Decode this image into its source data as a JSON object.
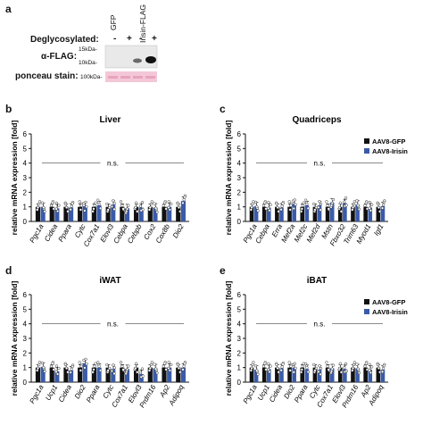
{
  "panel_letters": {
    "a": "a",
    "b": "b",
    "c": "c",
    "d": "d",
    "e": "e"
  },
  "blot": {
    "lane_groups": [
      "GFP",
      "Irisin-FLAG"
    ],
    "deglycosylated_label": "Deglycosylated:",
    "signs": [
      "-",
      "+",
      "-",
      "+"
    ],
    "flag_label": "α-FLAG:",
    "ponceau_label": "ponceau stain:",
    "markers": [
      "15kDa-",
      "10kDa-",
      "100kDa-"
    ]
  },
  "colors": {
    "gfp": "#111111",
    "irisin": "#3a5ba8",
    "ponceau": "#f4c7d6"
  },
  "chart_data": [
    {
      "type": "bar",
      "title": "Liver",
      "ylabel": "relative mRNA expression [fold]",
      "ylim": [
        0,
        6
      ],
      "yticks": [
        "0",
        "1",
        "2",
        "3",
        "4",
        "5",
        "6"
      ],
      "significance": "n.s.",
      "categories": [
        "Pgc1a",
        "Cidea",
        "Ppara",
        "Cytc",
        "Cox7a1",
        "Elovl3",
        "Cebpa",
        "Cebpb",
        "Cox2",
        "Cox8b",
        "Dio2"
      ],
      "series": [
        {
          "values": [
            1.0,
            1.0,
            1.0,
            1.0,
            1.0,
            1.0,
            1.0,
            1.0,
            1.0,
            1.0,
            1.0
          ]
        },
        {
          "values": [
            1.0,
            0.9,
            0.95,
            1.05,
            1.1,
            1.15,
            0.9,
            0.95,
            0.95,
            1.0,
            1.4
          ]
        }
      ]
    },
    {
      "type": "bar",
      "title": "Quadriceps",
      "ylabel": "relative mRNA expression [fold]",
      "ylim": [
        0,
        6
      ],
      "yticks": [
        "0",
        "1",
        "2",
        "3",
        "4",
        "5",
        "6"
      ],
      "significance": "n.s.",
      "categories": [
        "Pgc1a",
        "Cebpa",
        "Erra",
        "Mef2a",
        "Mef2c",
        "Mef2d",
        "Mstn",
        "Fbxo32",
        "Trim63",
        "Myod1",
        "Igf1"
      ],
      "series": [
        {
          "name": "AAV8-GFP",
          "values": [
            1.0,
            1.0,
            1.0,
            1.0,
            1.0,
            1.0,
            1.0,
            1.0,
            1.0,
            1.0,
            1.0
          ]
        },
        {
          "name": "AAV8-Irisin",
          "values": [
            1.05,
            0.95,
            0.95,
            1.2,
            1.1,
            1.1,
            1.3,
            1.25,
            1.15,
            0.95,
            1.05
          ]
        }
      ]
    },
    {
      "type": "bar",
      "title": "iWAT",
      "ylabel": "relative mRNA expression [fold]",
      "ylim": [
        0,
        6
      ],
      "yticks": [
        "0",
        "1",
        "2",
        "3",
        "4",
        "5",
        "6"
      ],
      "significance": "n.s.",
      "categories": [
        "Pgc1a",
        "Ucp1",
        "Cidea",
        "Dio2",
        "Ppara",
        "Cytc",
        "Cox7a1",
        "Elovl3",
        "Prdm16",
        "Ap2",
        "Adipoq"
      ],
      "series": [
        {
          "values": [
            1.0,
            1.0,
            1.0,
            1.0,
            1.0,
            1.0,
            1.0,
            1.0,
            1.0,
            1.0,
            1.0
          ]
        },
        {
          "values": [
            1.05,
            0.75,
            0.8,
            1.3,
            1.0,
            0.9,
            0.9,
            0.55,
            0.95,
            1.0,
            1.0
          ]
        }
      ]
    },
    {
      "type": "bar",
      "title": "iBAT",
      "ylabel": "relative mRNA expression [fold]",
      "ylim": [
        0,
        6
      ],
      "yticks": [
        "0",
        "1",
        "2",
        "3",
        "4",
        "5",
        "6"
      ],
      "significance": "n.s.",
      "categories": [
        "Pgc1a",
        "Ucp1",
        "Cidea",
        "Dio2",
        "Ppara",
        "Cytc",
        "Cox7a1",
        "Elovl3",
        "Prdm16",
        "Ap2",
        "Adipoq"
      ],
      "series": [
        {
          "name": "AAV8-GFP",
          "values": [
            1.0,
            1.0,
            1.0,
            1.0,
            1.0,
            1.0,
            1.0,
            1.0,
            1.0,
            1.0,
            1.0
          ]
        },
        {
          "name": "AAV8-Irisin",
          "values": [
            0.85,
            0.9,
            0.95,
            1.0,
            0.9,
            0.85,
            0.95,
            0.9,
            0.95,
            0.85,
            0.85
          ]
        }
      ]
    }
  ]
}
